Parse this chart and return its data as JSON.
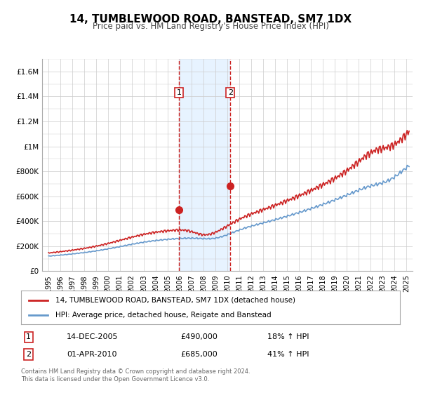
{
  "title": "14, TUMBLEWOOD ROAD, BANSTEAD, SM7 1DX",
  "subtitle": "Price paid vs. HM Land Registry's House Price Index (HPI)",
  "legend_line1": "14, TUMBLEWOOD ROAD, BANSTEAD, SM7 1DX (detached house)",
  "legend_line2": "HPI: Average price, detached house, Reigate and Banstead",
  "transaction1_label": "1",
  "transaction1_date": "14-DEC-2005",
  "transaction1_price": "£490,000",
  "transaction1_hpi": "18% ↑ HPI",
  "transaction2_label": "2",
  "transaction2_date": "01-APR-2010",
  "transaction2_price": "£685,000",
  "transaction2_hpi": "41% ↑ HPI",
  "footnote1": "Contains HM Land Registry data © Crown copyright and database right 2024.",
  "footnote2": "This data is licensed under the Open Government Licence v3.0.",
  "hpi_color": "#6699cc",
  "price_color": "#cc2222",
  "marker_color": "#cc2222",
  "shading_color": "#ddeeff",
  "marker1_date_num": 2005.95,
  "marker1_value": 490000,
  "marker2_date_num": 2010.25,
  "marker2_value": 685000,
  "vline1_date_num": 2005.95,
  "vline2_date_num": 2010.25,
  "ylim": [
    0,
    1700000
  ],
  "xlim_start": 1994.5,
  "xlim_end": 2025.5,
  "yticks": [
    0,
    200000,
    400000,
    600000,
    800000,
    1000000,
    1200000,
    1400000,
    1600000
  ],
  "ytick_labels": [
    "£0",
    "£200K",
    "£400K",
    "£600K",
    "£800K",
    "£1M",
    "£1.2M",
    "£1.4M",
    "£1.6M"
  ],
  "xtick_years": [
    1995,
    1996,
    1997,
    1998,
    1999,
    2000,
    2001,
    2002,
    2003,
    2004,
    2005,
    2006,
    2007,
    2008,
    2009,
    2010,
    2011,
    2012,
    2013,
    2014,
    2015,
    2016,
    2017,
    2018,
    2019,
    2020,
    2021,
    2022,
    2023,
    2024,
    2025
  ],
  "background_color": "#ffffff",
  "grid_color": "#cccccc"
}
